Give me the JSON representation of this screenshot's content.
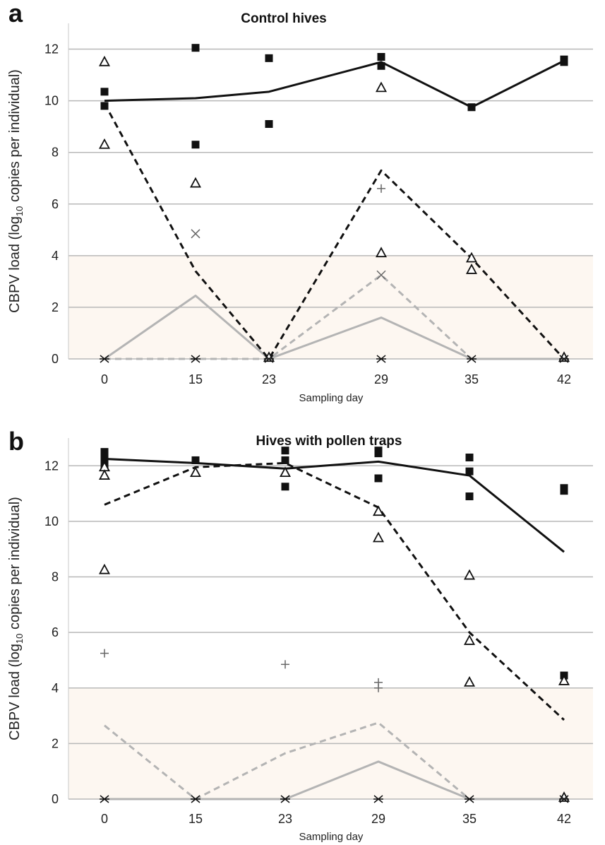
{
  "chart_data": [
    {
      "panel": "a",
      "type": "line",
      "title": "Control hives",
      "xlabel": "Sampling day",
      "ylabel": "CBPV load (log10 copies per individual)",
      "ylabel_parts": {
        "pre": "CBPV load (log",
        "sub": "10",
        "post": " copies per individual)"
      },
      "x_categories": [
        "0",
        "15",
        "23",
        "29",
        "35",
        "42"
      ],
      "ylim": [
        0,
        13
      ],
      "yticks": [
        "0",
        "2",
        "4",
        "6",
        "8",
        "10",
        "12"
      ],
      "shaded_band": [
        0,
        4
      ],
      "series": [
        {
          "style": "solid-black",
          "values": [
            10.0,
            10.1,
            10.35,
            11.5,
            9.75,
            11.55
          ]
        },
        {
          "style": "dashed-black",
          "values": [
            9.9,
            3.4,
            0.0,
            7.3,
            3.9,
            0.0
          ]
        },
        {
          "style": "solid-grey",
          "values": [
            0.0,
            2.45,
            0.0,
            1.6,
            0.0,
            0.0
          ]
        },
        {
          "style": "dashed-grey",
          "values": [
            0.0,
            0.0,
            0.0,
            3.25,
            0.0,
            0.0
          ]
        }
      ],
      "markers": [
        {
          "style": "square",
          "x": "0",
          "y": 10.35
        },
        {
          "style": "square",
          "x": "0",
          "y": 9.8
        },
        {
          "style": "square",
          "x": "15",
          "y": 12.05
        },
        {
          "style": "square",
          "x": "15",
          "y": 8.3
        },
        {
          "style": "square",
          "x": "23",
          "y": 11.65
        },
        {
          "style": "square",
          "x": "23",
          "y": 9.1
        },
        {
          "style": "square",
          "x": "29",
          "y": 11.7
        },
        {
          "style": "square",
          "x": "29",
          "y": 11.35
        },
        {
          "style": "square",
          "x": "35",
          "y": 9.75
        },
        {
          "style": "square",
          "x": "42",
          "y": 11.6
        },
        {
          "style": "square",
          "x": "42",
          "y": 11.5
        },
        {
          "style": "triangle",
          "x": "0",
          "y": 11.5
        },
        {
          "style": "triangle",
          "x": "0",
          "y": 8.3
        },
        {
          "style": "triangle",
          "x": "15",
          "y": 6.8
        },
        {
          "style": "triangle",
          "x": "23",
          "y": 0.05
        },
        {
          "style": "triangle",
          "x": "29",
          "y": 10.5
        },
        {
          "style": "triangle",
          "x": "29",
          "y": 4.1
        },
        {
          "style": "triangle",
          "x": "35",
          "y": 3.9
        },
        {
          "style": "triangle",
          "x": "35",
          "y": 3.45
        },
        {
          "style": "triangle",
          "x": "42",
          "y": 0.05
        },
        {
          "style": "x",
          "x": "15",
          "y": 4.85
        },
        {
          "style": "x",
          "x": "29",
          "y": 3.25
        },
        {
          "style": "plus",
          "x": "29",
          "y": 6.6
        },
        {
          "style": "star",
          "x": "0",
          "y": 0
        },
        {
          "style": "star",
          "x": "15",
          "y": 0
        },
        {
          "style": "star",
          "x": "23",
          "y": 0
        },
        {
          "style": "star",
          "x": "29",
          "y": 0
        },
        {
          "style": "star",
          "x": "35",
          "y": 0
        },
        {
          "style": "star",
          "x": "42",
          "y": 0
        }
      ]
    },
    {
      "panel": "b",
      "type": "line",
      "title": "Hives with pollen traps",
      "xlabel": "Sampling day",
      "ylabel": "CBPV load (log10 copies per individual)",
      "ylabel_parts": {
        "pre": "CBPV load (log",
        "sub": "10",
        "post": " copies per individual)"
      },
      "x_categories": [
        "0",
        "15",
        "23",
        "29",
        "35",
        "42"
      ],
      "ylim": [
        0,
        13
      ],
      "yticks": [
        "0",
        "2",
        "4",
        "6",
        "8",
        "10",
        "12"
      ],
      "shaded_band": [
        0,
        4
      ],
      "series": [
        {
          "style": "solid-black",
          "values": [
            12.25,
            12.1,
            11.9,
            12.15,
            11.65,
            8.9
          ]
        },
        {
          "style": "dashed-black",
          "values": [
            10.6,
            11.95,
            12.1,
            10.5,
            6.0,
            2.85
          ]
        },
        {
          "style": "solid-grey",
          "values": [
            0.0,
            0.0,
            0.0,
            1.35,
            0.0,
            0.0
          ]
        },
        {
          "style": "dashed-grey",
          "values": [
            2.65,
            0.0,
            1.65,
            2.75,
            0.0,
            0.0
          ]
        }
      ],
      "markers": [
        {
          "style": "square",
          "x": "0",
          "y": 12.5
        },
        {
          "style": "square",
          "x": "0",
          "y": 12.3
        },
        {
          "style": "square",
          "x": "0",
          "y": 12.05
        },
        {
          "style": "square",
          "x": "15",
          "y": 12.2
        },
        {
          "style": "square",
          "x": "23",
          "y": 12.55
        },
        {
          "style": "square",
          "x": "23",
          "y": 12.2
        },
        {
          "style": "square",
          "x": "23",
          "y": 11.25
        },
        {
          "style": "square",
          "x": "29",
          "y": 12.55
        },
        {
          "style": "square",
          "x": "29",
          "y": 12.45
        },
        {
          "style": "square",
          "x": "29",
          "y": 11.55
        },
        {
          "style": "square",
          "x": "35",
          "y": 12.3
        },
        {
          "style": "square",
          "x": "35",
          "y": 11.8
        },
        {
          "style": "square",
          "x": "35",
          "y": 10.9
        },
        {
          "style": "square",
          "x": "42",
          "y": 11.2
        },
        {
          "style": "square",
          "x": "42",
          "y": 11.1
        },
        {
          "style": "square",
          "x": "42",
          "y": 4.45
        },
        {
          "style": "triangle",
          "x": "0",
          "y": 11.95
        },
        {
          "style": "triangle",
          "x": "0",
          "y": 11.65
        },
        {
          "style": "triangle",
          "x": "0",
          "y": 8.25
        },
        {
          "style": "triangle",
          "x": "15",
          "y": 11.75
        },
        {
          "style": "triangle",
          "x": "23",
          "y": 11.75
        },
        {
          "style": "triangle",
          "x": "29",
          "y": 10.35
        },
        {
          "style": "triangle",
          "x": "29",
          "y": 9.4
        },
        {
          "style": "triangle",
          "x": "35",
          "y": 8.05
        },
        {
          "style": "triangle",
          "x": "35",
          "y": 5.7
        },
        {
          "style": "triangle",
          "x": "35",
          "y": 4.2
        },
        {
          "style": "triangle",
          "x": "42",
          "y": 4.25
        },
        {
          "style": "triangle",
          "x": "42",
          "y": 0.05
        },
        {
          "style": "plus",
          "x": "0",
          "y": 5.25
        },
        {
          "style": "plus",
          "x": "23",
          "y": 4.85
        },
        {
          "style": "plus",
          "x": "29",
          "y": 4.2
        },
        {
          "style": "plus",
          "x": "29",
          "y": 4.0
        },
        {
          "style": "star",
          "x": "0",
          "y": 0
        },
        {
          "style": "star",
          "x": "15",
          "y": 0
        },
        {
          "style": "star",
          "x": "23",
          "y": 0
        },
        {
          "style": "star",
          "x": "29",
          "y": 0
        },
        {
          "style": "star",
          "x": "35",
          "y": 0
        },
        {
          "style": "star",
          "x": "42",
          "y": 0
        }
      ]
    }
  ],
  "colors": {
    "band": "#fdf7f1",
    "grid": "#b8b8b8",
    "black_series": "#111111",
    "grey_series": "#b4b4b4",
    "marker": "#111111",
    "marker_light": "#666666"
  }
}
